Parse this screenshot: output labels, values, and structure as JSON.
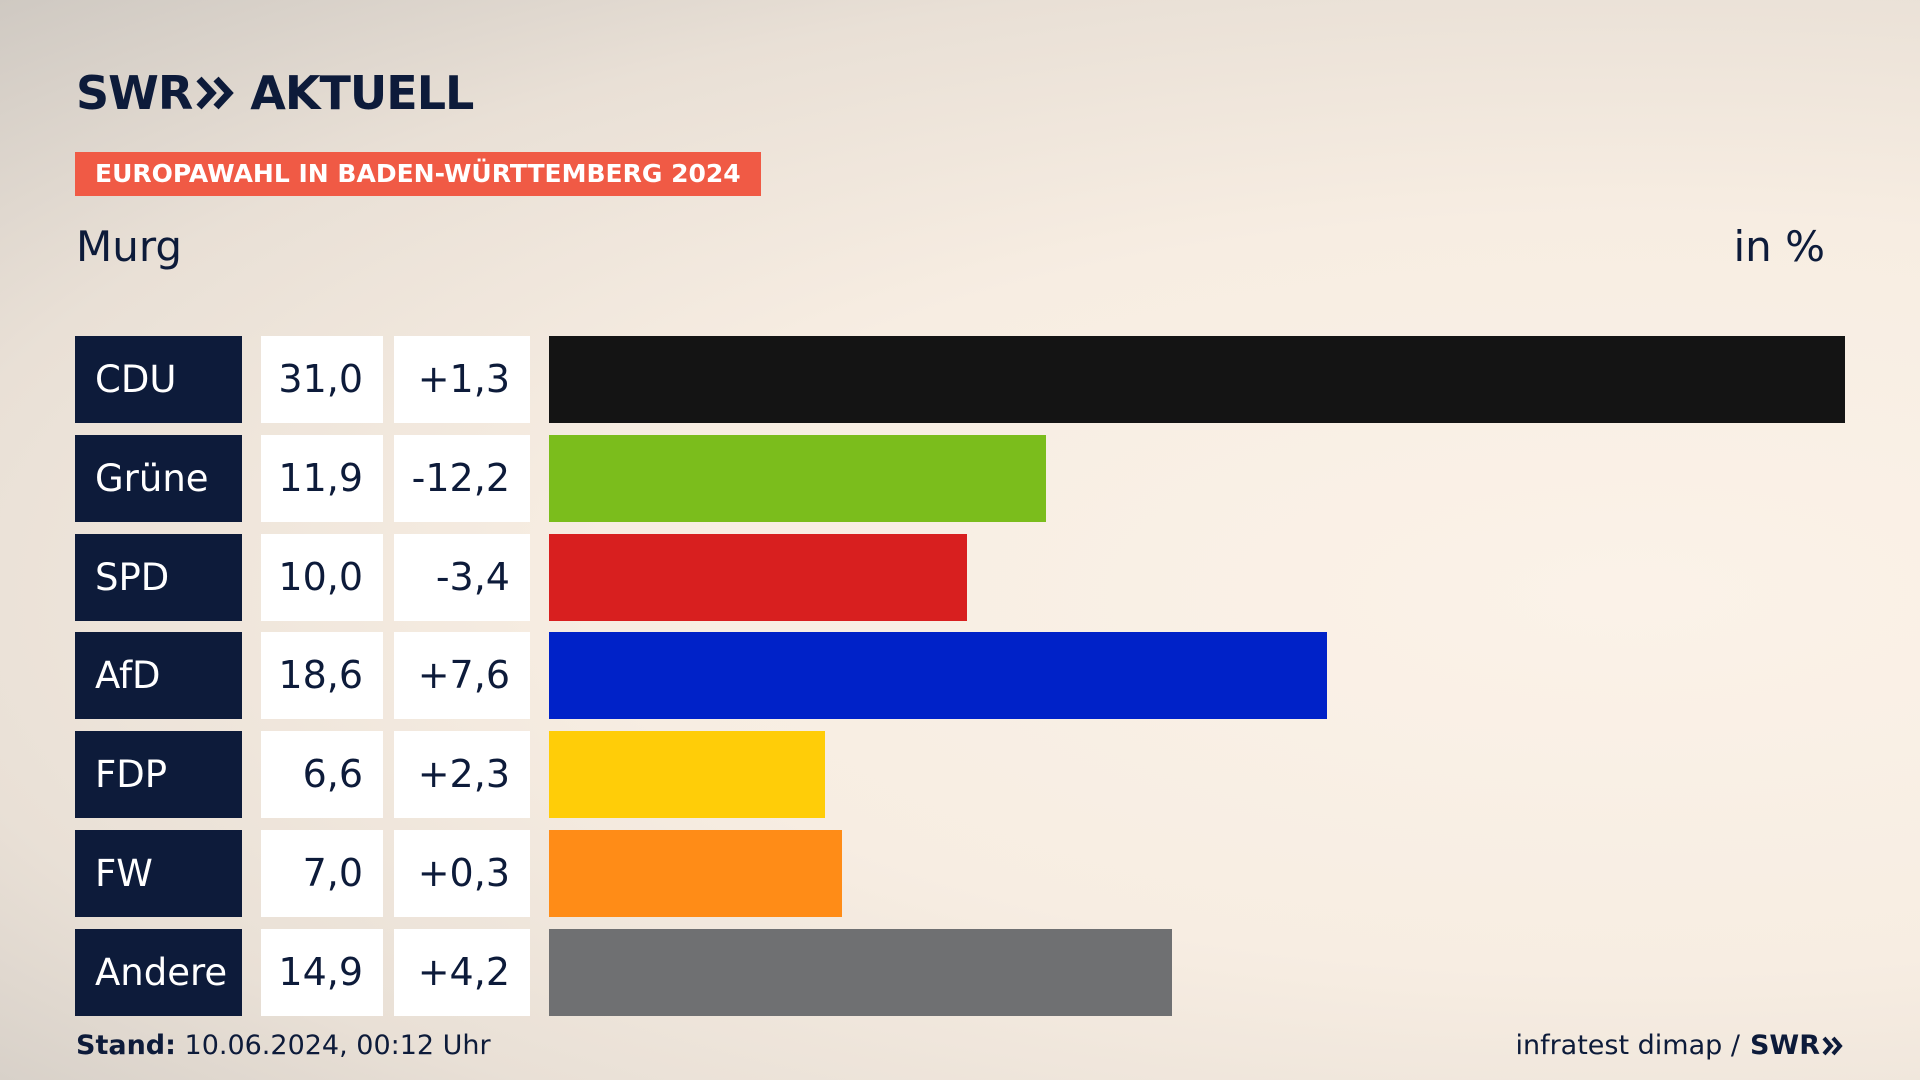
{
  "header": {
    "brand": "SWR",
    "brand_suffix": "AKTUELL",
    "banner": "EUROPAWAHL IN BADEN-WÜRTTEMBERG 2024"
  },
  "subheader": {
    "region": "Murg",
    "unit": "in %"
  },
  "chart_data": {
    "type": "bar",
    "orientation": "horizontal",
    "xlim": [
      0,
      31
    ],
    "categories": [
      "CDU",
      "Grüne",
      "SPD",
      "AfD",
      "FDP",
      "FW",
      "Andere"
    ],
    "series": [
      {
        "name": "",
        "values": [
          31.0,
          11.9,
          10.0,
          18.6,
          6.6,
          7.0,
          14.9
        ]
      }
    ],
    "value_labels": [
      "31,0",
      "11,9",
      "10,0",
      "18,6",
      "6,6",
      "7,0",
      "14,9"
    ],
    "change_labels": [
      "+1,3",
      "-12,2",
      "-3,4",
      "+7,6",
      "+2,3",
      "+0,3",
      "+4,2"
    ],
    "changes": [
      1.3,
      -12.2,
      -3.4,
      7.6,
      2.3,
      0.3,
      4.2
    ],
    "colors": [
      "#141414",
      "#7bbd1c",
      "#d81f1f",
      "#0022c8",
      "#ffcd08",
      "#ff8c17",
      "#6f7072"
    ]
  },
  "footer": {
    "stand_label": "Stand:",
    "stand_value": "10.06.2024, 00:12 Uhr",
    "source": "infratest dimap /",
    "source_brand": "SWR"
  },
  "colors": {
    "navy": "#0d1b3a",
    "banner": "#f05a45"
  }
}
